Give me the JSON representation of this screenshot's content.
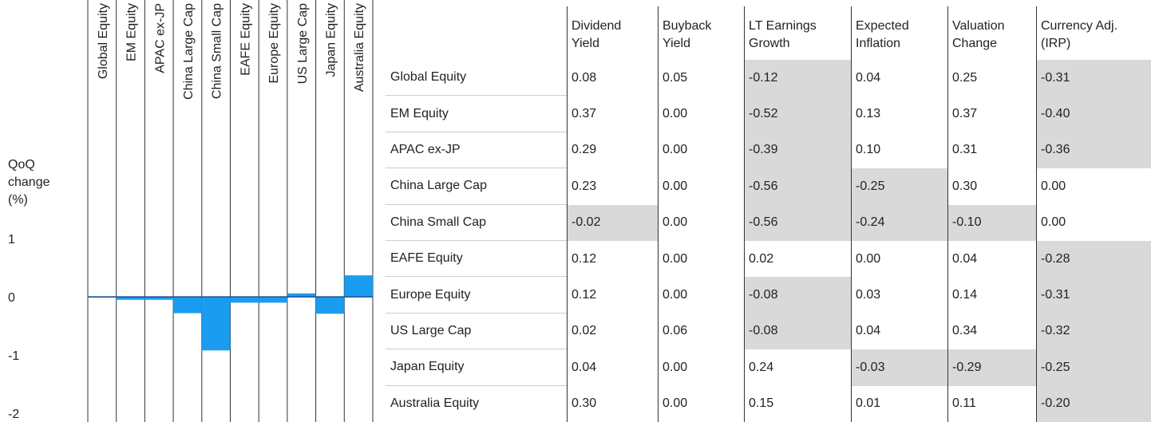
{
  "chart_data": {
    "type": "bar",
    "y_label": "QoQ\nchange\n(%)",
    "categories": [
      "Global Equity",
      "EM Equity",
      "APAC ex-JP",
      "China Large Cap",
      "China Small Cap",
      "EAFE Equity",
      "Europe Equity",
      "US Large Cap",
      "Japan Equity",
      "Australia Equity"
    ],
    "values": [
      -0.01,
      -0.05,
      -0.05,
      -0.28,
      -0.92,
      -0.1,
      -0.1,
      0.06,
      -0.29,
      0.37
    ],
    "color": "#1a9cf0",
    "ylim": [
      -2.15,
      1.4
    ],
    "yticks": [
      1,
      0,
      -1,
      -2
    ]
  },
  "table": {
    "columns": [
      "Dividend\nYield",
      "Buyback\nYield",
      "LT Earnings\nGrowth",
      "Expected\nInflation",
      "Valuation\nChange",
      "Currency Adj.\n(IRP)"
    ],
    "rows": [
      {
        "label": "Global Equity",
        "cells": [
          "0.08",
          "0.05",
          "-0.12",
          "0.04",
          "0.25",
          "-0.31"
        ]
      },
      {
        "label": "EM Equity",
        "cells": [
          "0.37",
          "0.00",
          "-0.52",
          "0.13",
          "0.37",
          "-0.40"
        ]
      },
      {
        "label": "APAC ex-JP",
        "cells": [
          "0.29",
          "0.00",
          "-0.39",
          "0.10",
          "0.31",
          "-0.36"
        ]
      },
      {
        "label": "China Large Cap",
        "cells": [
          "0.23",
          "0.00",
          "-0.56",
          "-0.25",
          "0.30",
          "0.00"
        ]
      },
      {
        "label": "China Small Cap",
        "cells": [
          "-0.02",
          "0.00",
          "-0.56",
          "-0.24",
          "-0.10",
          "0.00"
        ]
      },
      {
        "label": "EAFE Equity",
        "cells": [
          "0.12",
          "0.00",
          "0.02",
          "0.00",
          "0.04",
          "-0.28"
        ]
      },
      {
        "label": "Europe Equity",
        "cells": [
          "0.12",
          "0.00",
          "-0.08",
          "0.03",
          "0.14",
          "-0.31"
        ]
      },
      {
        "label": "US Large Cap",
        "cells": [
          "0.02",
          "0.06",
          "-0.08",
          "0.04",
          "0.34",
          "-0.32"
        ]
      },
      {
        "label": "Japan Equity",
        "cells": [
          "0.04",
          "0.00",
          "0.24",
          "-0.03",
          "-0.29",
          "-0.25"
        ]
      },
      {
        "label": "Australia Equity",
        "cells": [
          "0.30",
          "0.00",
          "0.15",
          "0.01",
          "0.11",
          "-0.20"
        ]
      }
    ]
  }
}
